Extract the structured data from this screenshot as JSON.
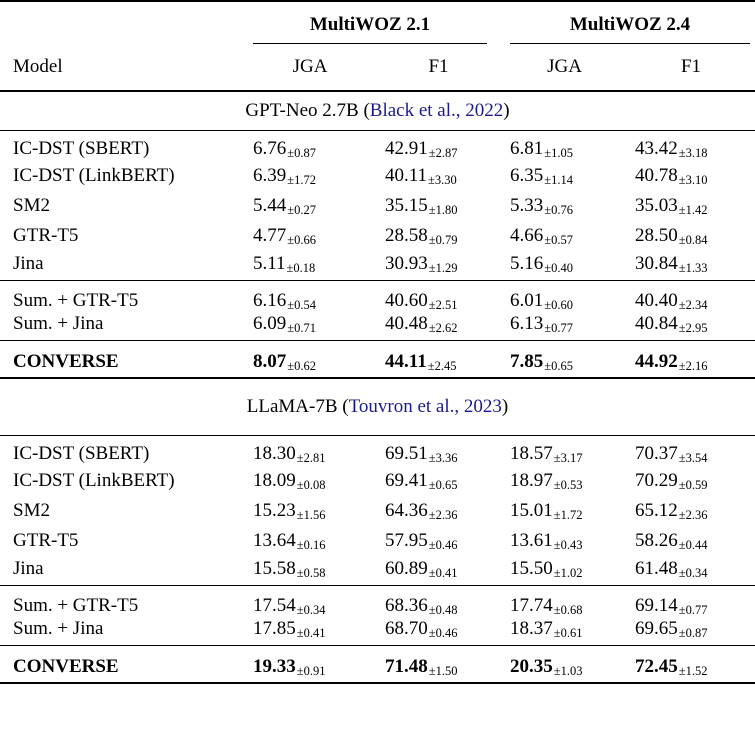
{
  "colors": {
    "text": "#000000",
    "citation": "#1a1a8f",
    "background": "#ffffff"
  },
  "table": {
    "col_model_header": "Model",
    "groups": [
      {
        "label": "MultiWOZ 2.1",
        "sub": [
          "JGA",
          "F1"
        ]
      },
      {
        "label": "MultiWOZ 2.4",
        "sub": [
          "JGA",
          "F1"
        ]
      }
    ],
    "sections": [
      {
        "title_prefix": "GPT-Neo 2.7B (",
        "citation": "Black et al., 2022",
        "title_suffix": ")",
        "blocks": [
          {
            "bold": false,
            "rows": [
              {
                "model": "IC-DST (SBERT)",
                "cells": [
                  {
                    "v": "6.76",
                    "sd": "±0.87"
                  },
                  {
                    "v": "42.91",
                    "sd": "±2.87"
                  },
                  {
                    "v": "6.81",
                    "sd": "±1.05"
                  },
                  {
                    "v": "43.42",
                    "sd": "±3.18"
                  }
                ]
              },
              {
                "model": "IC-DST (LinkBERT)",
                "cells": [
                  {
                    "v": "6.39",
                    "sd": "±1.72"
                  },
                  {
                    "v": "40.11",
                    "sd": "±3.30"
                  },
                  {
                    "v": "6.35",
                    "sd": "±1.14"
                  },
                  {
                    "v": "40.78",
                    "sd": "±3.10"
                  }
                ]
              },
              {
                "model": "SM2",
                "cells": [
                  {
                    "v": "5.44",
                    "sd": "±0.27"
                  },
                  {
                    "v": "35.15",
                    "sd": "±1.80"
                  },
                  {
                    "v": "5.33",
                    "sd": "±0.76"
                  },
                  {
                    "v": "35.03",
                    "sd": "±1.42"
                  }
                ]
              },
              {
                "model": "GTR-T5",
                "cells": [
                  {
                    "v": "4.77",
                    "sd": "±0.66"
                  },
                  {
                    "v": "28.58",
                    "sd": "±0.79"
                  },
                  {
                    "v": "4.66",
                    "sd": "±0.57"
                  },
                  {
                    "v": "28.50",
                    "sd": "±0.84"
                  }
                ]
              },
              {
                "model": "Jina",
                "cells": [
                  {
                    "v": "5.11",
                    "sd": "±0.18"
                  },
                  {
                    "v": "30.93",
                    "sd": "±1.29"
                  },
                  {
                    "v": "5.16",
                    "sd": "±0.40"
                  },
                  {
                    "v": "30.84",
                    "sd": "±1.33"
                  }
                ]
              }
            ]
          },
          {
            "bold": false,
            "rows": [
              {
                "model": "Sum. + GTR-T5",
                "cells": [
                  {
                    "v": "6.16",
                    "sd": "±0.54"
                  },
                  {
                    "v": "40.60",
                    "sd": "±2.51"
                  },
                  {
                    "v": "6.01",
                    "sd": "±0.60"
                  },
                  {
                    "v": "40.40",
                    "sd": "±2.34"
                  }
                ]
              },
              {
                "model": "Sum. + Jina",
                "cells": [
                  {
                    "v": "6.09",
                    "sd": "±0.71"
                  },
                  {
                    "v": "40.48",
                    "sd": "±2.62"
                  },
                  {
                    "v": "6.13",
                    "sd": "±0.77"
                  },
                  {
                    "v": "40.84",
                    "sd": "±2.95"
                  }
                ]
              }
            ]
          },
          {
            "bold": true,
            "rows": [
              {
                "model": "CONVERSE",
                "cells": [
                  {
                    "v": "8.07",
                    "sd": "±0.62"
                  },
                  {
                    "v": "44.11",
                    "sd": "±2.45"
                  },
                  {
                    "v": "7.85",
                    "sd": "±0.65"
                  },
                  {
                    "v": "44.92",
                    "sd": "±2.16"
                  }
                ]
              }
            ]
          }
        ]
      },
      {
        "title_prefix": "LLaMA-7B (",
        "citation": "Touvron et al., 2023",
        "title_suffix": ")",
        "blocks": [
          {
            "bold": false,
            "rows": [
              {
                "model": "IC-DST (SBERT)",
                "cells": [
                  {
                    "v": "18.30",
                    "sd": "±2.81"
                  },
                  {
                    "v": "69.51",
                    "sd": "±3.36"
                  },
                  {
                    "v": "18.57",
                    "sd": "±3.17"
                  },
                  {
                    "v": "70.37",
                    "sd": "±3.54"
                  }
                ]
              },
              {
                "model": "IC-DST (LinkBERT)",
                "cells": [
                  {
                    "v": "18.09",
                    "sd": "±0.08"
                  },
                  {
                    "v": "69.41",
                    "sd": "±0.65"
                  },
                  {
                    "v": "18.97",
                    "sd": "±0.53"
                  },
                  {
                    "v": "70.29",
                    "sd": "±0.59"
                  }
                ]
              },
              {
                "model": "SM2",
                "cells": [
                  {
                    "v": "15.23",
                    "sd": "±1.56"
                  },
                  {
                    "v": "64.36",
                    "sd": "±2.36"
                  },
                  {
                    "v": "15.01",
                    "sd": "±1.72"
                  },
                  {
                    "v": "65.12",
                    "sd": "±2.36"
                  }
                ]
              },
              {
                "model": "GTR-T5",
                "cells": [
                  {
                    "v": "13.64",
                    "sd": "±0.16"
                  },
                  {
                    "v": "57.95",
                    "sd": "±0.46"
                  },
                  {
                    "v": "13.61",
                    "sd": "±0.43"
                  },
                  {
                    "v": "58.26",
                    "sd": "±0.44"
                  }
                ]
              },
              {
                "model": "Jina",
                "cells": [
                  {
                    "v": "15.58",
                    "sd": "±0.58"
                  },
                  {
                    "v": "60.89",
                    "sd": "±0.41"
                  },
                  {
                    "v": "15.50",
                    "sd": "±1.02"
                  },
                  {
                    "v": "61.48",
                    "sd": "±0.34"
                  }
                ]
              }
            ]
          },
          {
            "bold": false,
            "rows": [
              {
                "model": "Sum. + GTR-T5",
                "cells": [
                  {
                    "v": "17.54",
                    "sd": "±0.34"
                  },
                  {
                    "v": "68.36",
                    "sd": "±0.48"
                  },
                  {
                    "v": "17.74",
                    "sd": "±0.68"
                  },
                  {
                    "v": "69.14",
                    "sd": "±0.77"
                  }
                ]
              },
              {
                "model": "Sum. + Jina",
                "cells": [
                  {
                    "v": "17.85",
                    "sd": "±0.41"
                  },
                  {
                    "v": "68.70",
                    "sd": "±0.46"
                  },
                  {
                    "v": "18.37",
                    "sd": "±0.61"
                  },
                  {
                    "v": "69.65",
                    "sd": "±0.87"
                  }
                ]
              }
            ]
          },
          {
            "bold": true,
            "rows": [
              {
                "model": "CONVERSE",
                "cells": [
                  {
                    "v": "19.33",
                    "sd": "±0.91"
                  },
                  {
                    "v": "71.48",
                    "sd": "±1.50"
                  },
                  {
                    "v": "20.35",
                    "sd": "±1.03"
                  },
                  {
                    "v": "72.45",
                    "sd": "±1.52"
                  }
                ]
              }
            ]
          }
        ]
      }
    ]
  }
}
